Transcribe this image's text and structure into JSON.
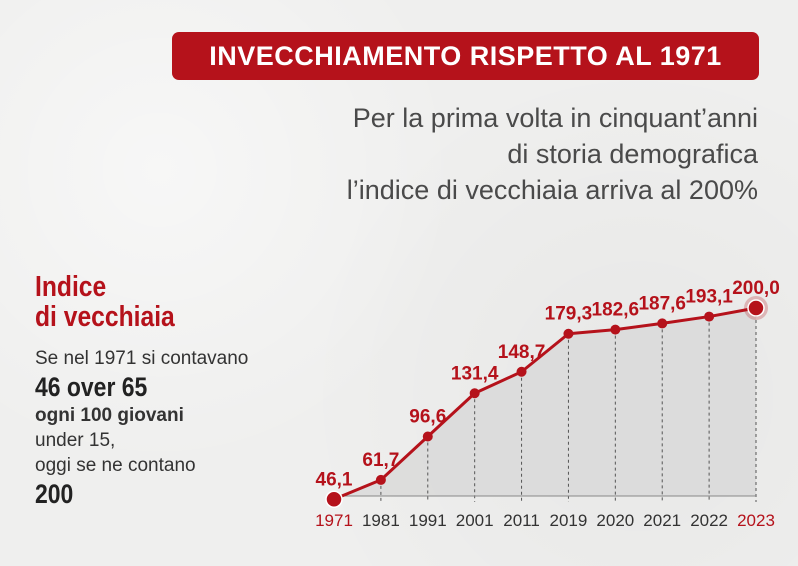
{
  "title": "INVECCHIAMENTO RISPETTO AL 1971",
  "subtitle_lines": [
    "Per la prima volta in cinquant’anni",
    "di storia demografica",
    "l’indice di vecchiaia arriva al 200%"
  ],
  "side": {
    "heading_line1": "Indice",
    "heading_line2": "di vecchiaia",
    "line1": "Se nel 1971 si contavano",
    "line2": "46 over 65",
    "line3": "ogni 100 giovani",
    "line4": "under 15,",
    "line5": "oggi se ne contano",
    "line6": "200"
  },
  "colors": {
    "accent": "#b5121b",
    "area": "#d9d9d9",
    "text": "#333333"
  },
  "chart_data": {
    "type": "line",
    "categories": [
      "1971",
      "1981",
      "1991",
      "2001",
      "2011",
      "2019",
      "2020",
      "2021",
      "2022",
      "2023"
    ],
    "values": [
      46.1,
      61.7,
      96.6,
      131.4,
      148.7,
      179.3,
      182.6,
      187.6,
      193.1,
      200.0
    ],
    "labels": [
      "46,1",
      "61,7",
      "96,6",
      "131,4",
      "148,7",
      "179,3",
      "182,6",
      "187,6",
      "193,1",
      "200,0"
    ],
    "highlighted_categories": [
      "1971",
      "2023"
    ],
    "area_fill": true,
    "ylim": [
      0,
      200
    ]
  }
}
